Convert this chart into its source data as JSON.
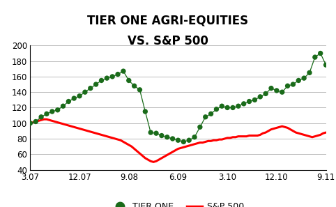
{
  "title_line1": "TIER ONE AGRI-EQUITIES",
  "title_line2": "VS. S&P 500",
  "title_fontsize": 12,
  "title_fontweight": "bold",
  "xlim": [
    0,
    54
  ],
  "ylim": [
    40,
    200
  ],
  "yticks": [
    40,
    60,
    80,
    100,
    120,
    140,
    160,
    180,
    200
  ],
  "xtick_labels": [
    "3.07",
    "12.07",
    "9.08",
    "6.09",
    "3.10",
    "12.10",
    "9.11"
  ],
  "xtick_positions": [
    0,
    9,
    18,
    27,
    36,
    45,
    54
  ],
  "sp500_x": [
    0,
    0.5,
    1,
    1.5,
    2,
    2.5,
    3,
    3.5,
    4,
    4.5,
    5,
    5.5,
    6,
    6.5,
    7,
    7.5,
    8,
    8.5,
    9,
    9.5,
    10,
    10.5,
    11,
    11.5,
    12,
    12.5,
    13,
    13.5,
    14,
    14.5,
    15,
    15.5,
    16,
    16.5,
    17,
    17.5,
    18,
    18.5,
    19,
    19.5,
    20,
    20.5,
    21,
    21.5,
    22,
    22.5,
    23,
    23.5,
    24,
    24.5,
    25,
    25.5,
    26,
    26.5,
    27,
    27.5,
    28,
    28.5,
    29,
    29.5,
    30,
    30.5,
    31,
    31.5,
    32,
    32.5,
    33,
    33.5,
    34,
    34.5,
    35,
    35.5,
    36,
    36.5,
    37,
    37.5,
    38,
    38.5,
    39,
    39.5,
    40,
    40.5,
    41,
    41.5,
    42,
    42.5,
    43,
    43.5,
    44,
    44.5,
    45,
    45.5,
    46,
    46.5,
    47,
    47.5,
    48,
    48.5,
    49,
    49.5,
    50,
    50.5,
    51,
    51.5,
    52,
    52.5,
    53,
    53.5,
    54
  ],
  "sp500_y": [
    100,
    101,
    102,
    103,
    104,
    105,
    105,
    104,
    103,
    102,
    101,
    100,
    99,
    98,
    97,
    96,
    95,
    94,
    93,
    92,
    91,
    90,
    89,
    88,
    87,
    86,
    85,
    84,
    83,
    82,
    81,
    80,
    79,
    78,
    76,
    74,
    72,
    70,
    67,
    64,
    61,
    58,
    55,
    53,
    51,
    50,
    51,
    53,
    55,
    57,
    59,
    61,
    63,
    65,
    67,
    68,
    69,
    70,
    71,
    72,
    73,
    74,
    75,
    75,
    76,
    77,
    77,
    78,
    78,
    79,
    79,
    80,
    81,
    81,
    82,
    82,
    83,
    83,
    83,
    83,
    84,
    84,
    84,
    84,
    85,
    87,
    88,
    90,
    92,
    93,
    94,
    95,
    96,
    95,
    94,
    92,
    90,
    88,
    87,
    86,
    85,
    84,
    83,
    82,
    83,
    84,
    85,
    87,
    88
  ],
  "tier_monthly_x": [
    0,
    1,
    2,
    3,
    4,
    5,
    6,
    7,
    8,
    9,
    10,
    11,
    12,
    13,
    14,
    15,
    16,
    17,
    18,
    19,
    20,
    21,
    22,
    23,
    24,
    25,
    26,
    27,
    28,
    29,
    30,
    31,
    32,
    33,
    34,
    35,
    36,
    37,
    38,
    39,
    40,
    41,
    42,
    43,
    44,
    45,
    46,
    47,
    48,
    49,
    50,
    51,
    52,
    53,
    54
  ],
  "tier_monthly_y": [
    100,
    102,
    108,
    112,
    115,
    117,
    122,
    128,
    132,
    135,
    140,
    145,
    150,
    155,
    158,
    160,
    163,
    167,
    155,
    148,
    143,
    115,
    88,
    87,
    84,
    82,
    80,
    78,
    76,
    78,
    82,
    95,
    108,
    112,
    118,
    122,
    120,
    120,
    122,
    125,
    128,
    130,
    134,
    138,
    145,
    142,
    140,
    148,
    150,
    155,
    158,
    165,
    185,
    190,
    175
  ],
  "sp500_color": "#ff0000",
  "tier_color": "#1a6b1a",
  "background_color": "#ffffff",
  "grid_color": "#b0b0b0",
  "legend_marker_size": 9,
  "legend_fontsize": 9,
  "axis_label_fontsize": 8.5
}
